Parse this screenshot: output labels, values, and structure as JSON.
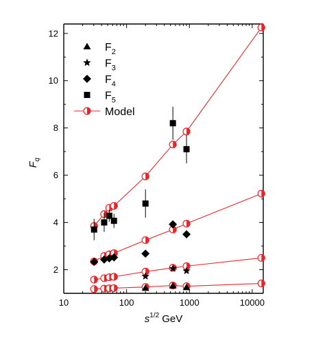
{
  "colors": {
    "model": "#e8262a",
    "markers": "#000000",
    "background": "#ffffff"
  },
  "chart_data": {
    "type": "scatter",
    "title": "",
    "xlabel_base": "s",
    "xlabel_sup": "1/2",
    "xlabel_unit": "GeV",
    "ylabel_main": "F",
    "ylabel_sub": "q",
    "xscale": "log",
    "xlim": [
      10,
      15000
    ],
    "ylim": [
      1,
      12.4
    ],
    "x_ticks": [
      10,
      100,
      1000,
      10000
    ],
    "x_tick_labels": [
      "10",
      "100",
      "1000",
      "10000"
    ],
    "y_ticks": [
      2,
      4,
      6,
      8,
      10,
      12
    ],
    "y_tick_labels": [
      "2",
      "4",
      "6",
      "8",
      "10",
      "12"
    ],
    "grid": false,
    "legend_position": "top-left",
    "legend": [
      {
        "label_main": "F",
        "label_sub": "2",
        "marker": "triangle"
      },
      {
        "label_main": "F",
        "label_sub": "3",
        "marker": "star"
      },
      {
        "label_main": "F",
        "label_sub": "4",
        "marker": "diamond"
      },
      {
        "label_main": "F",
        "label_sub": "5",
        "marker": "square"
      },
      {
        "label_main": "Model",
        "label_sub": "",
        "marker": "half-circle"
      }
    ],
    "series": [
      {
        "name": "F2",
        "marker": "triangle",
        "points": [
          {
            "x": 200,
            "y": 1.22,
            "err": 0
          },
          {
            "x": 546,
            "y": 1.32,
            "err": 0
          },
          {
            "x": 900,
            "y": 1.25,
            "err": 0
          }
        ]
      },
      {
        "name": "F3",
        "marker": "star",
        "points": [
          {
            "x": 200,
            "y": 1.72,
            "err": 0
          },
          {
            "x": 546,
            "y": 2.05,
            "err": 0
          },
          {
            "x": 900,
            "y": 1.95,
            "err": 0
          }
        ]
      },
      {
        "name": "F4",
        "marker": "diamond",
        "points": [
          {
            "x": 30.4,
            "y": 2.33,
            "err": 0.05
          },
          {
            "x": 44,
            "y": 2.43,
            "err": 0.1
          },
          {
            "x": 53,
            "y": 2.48,
            "err": 0.1
          },
          {
            "x": 63,
            "y": 2.52,
            "err": 0.1
          },
          {
            "x": 200,
            "y": 2.68,
            "err": 0.15
          },
          {
            "x": 546,
            "y": 3.92,
            "err": 0.15
          },
          {
            "x": 900,
            "y": 3.5,
            "err": 0.1
          }
        ]
      },
      {
        "name": "F5",
        "marker": "square",
        "points": [
          {
            "x": 30.4,
            "y": 3.7,
            "err": 0.45
          },
          {
            "x": 44,
            "y": 4.0,
            "err": 0.4
          },
          {
            "x": 53,
            "y": 4.28,
            "err": 0.25
          },
          {
            "x": 63,
            "y": 4.07,
            "err": 0.3
          },
          {
            "x": 200,
            "y": 4.8,
            "err": 0.6
          },
          {
            "x": 546,
            "y": 8.2,
            "err": 0.7
          },
          {
            "x": 900,
            "y": 7.1,
            "err": 0.6
          }
        ]
      },
      {
        "name": "Model",
        "marker": "half-circle",
        "line": true,
        "curves": [
          {
            "x": [
              30.4,
              44,
              53,
              63,
              200,
              546,
              900,
              14000
            ],
            "y": [
              1.18,
              1.2,
              1.21,
              1.22,
              1.27,
              1.33,
              1.3,
              1.42
            ]
          },
          {
            "x": [
              30.4,
              44,
              53,
              63,
              200,
              546,
              900,
              14000
            ],
            "y": [
              1.58,
              1.64,
              1.68,
              1.7,
              1.92,
              2.08,
              2.15,
              2.5
            ]
          },
          {
            "x": [
              30.4,
              44,
              53,
              63,
              200,
              546,
              900,
              14000
            ],
            "y": [
              2.35,
              2.58,
              2.65,
              2.7,
              3.25,
              3.7,
              3.95,
              5.22
            ]
          },
          {
            "x": [
              30.4,
              44,
              53,
              63,
              200,
              546,
              900,
              14000
            ],
            "y": [
              3.85,
              4.35,
              4.62,
              4.7,
              5.95,
              7.3,
              7.85,
              12.25
            ]
          }
        ]
      }
    ]
  }
}
